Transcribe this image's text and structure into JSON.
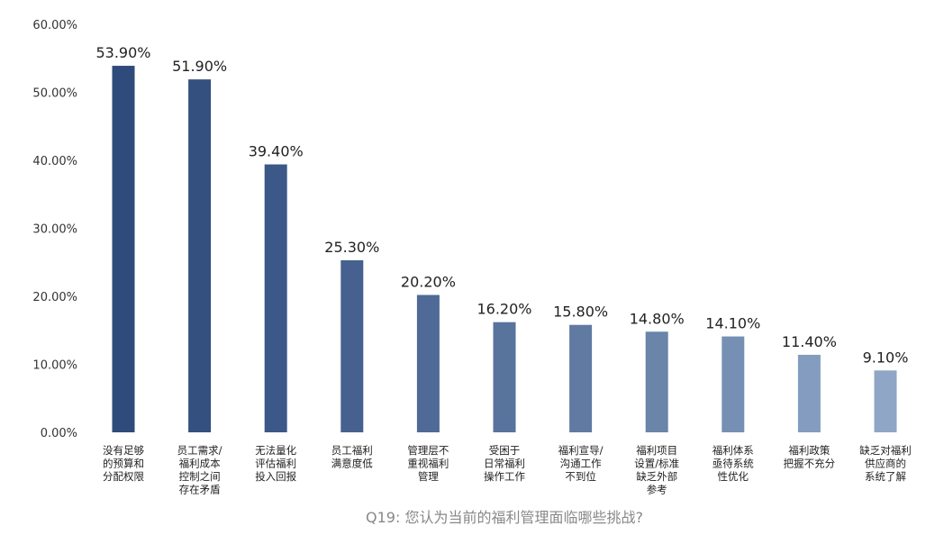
{
  "chart_data": {
    "type": "bar",
    "title": "Q19: 您认为当前的福利管理面临哪些挑战?",
    "xlabel": "",
    "ylabel": "",
    "ylim": [
      0,
      60
    ],
    "yticks": [
      "0.00%",
      "10.00%",
      "20.00%",
      "30.00%",
      "40.00%",
      "50.00%",
      "60.00%"
    ],
    "categories": [
      [
        "没有足够",
        "的预算和",
        "分配权限"
      ],
      [
        "员工需求/",
        "福利成本",
        "控制之间",
        "存在矛盾"
      ],
      [
        "无法量化",
        "评估福利",
        "投入回报"
      ],
      [
        "员工福利",
        "满意度低"
      ],
      [
        "管理层不",
        "重视福利",
        "管理"
      ],
      [
        "受困于",
        "日常福利",
        "操作工作"
      ],
      [
        "福利宣导/",
        "沟通工作",
        "不到位"
      ],
      [
        "福利项目",
        "设置/标准",
        "缺乏外部",
        "参考"
      ],
      [
        "福利体系",
        "亟待系统",
        "性优化"
      ],
      [
        "福利政策",
        "把握不充分"
      ],
      [
        "缺乏对福利",
        "供应商的",
        "系统了解"
      ]
    ],
    "values": [
      53.9,
      51.9,
      39.4,
      25.3,
      20.2,
      16.2,
      15.8,
      14.8,
      14.1,
      11.4,
      9.1
    ],
    "value_labels": [
      "53.90%",
      "51.90%",
      "39.40%",
      "25.30%",
      "20.20%",
      "16.20%",
      "15.80%",
      "14.80%",
      "14.10%",
      "11.40%",
      "9.10%"
    ],
    "colors": [
      "#2f4b7c",
      "#34507f",
      "#3c5888",
      "#46618f",
      "#4f6a96",
      "#58739c",
      "#607aa2",
      "#6a84aa",
      "#7690b5",
      "#839cbf",
      "#8fa6c7"
    ],
    "grid": false,
    "legend": "none"
  }
}
